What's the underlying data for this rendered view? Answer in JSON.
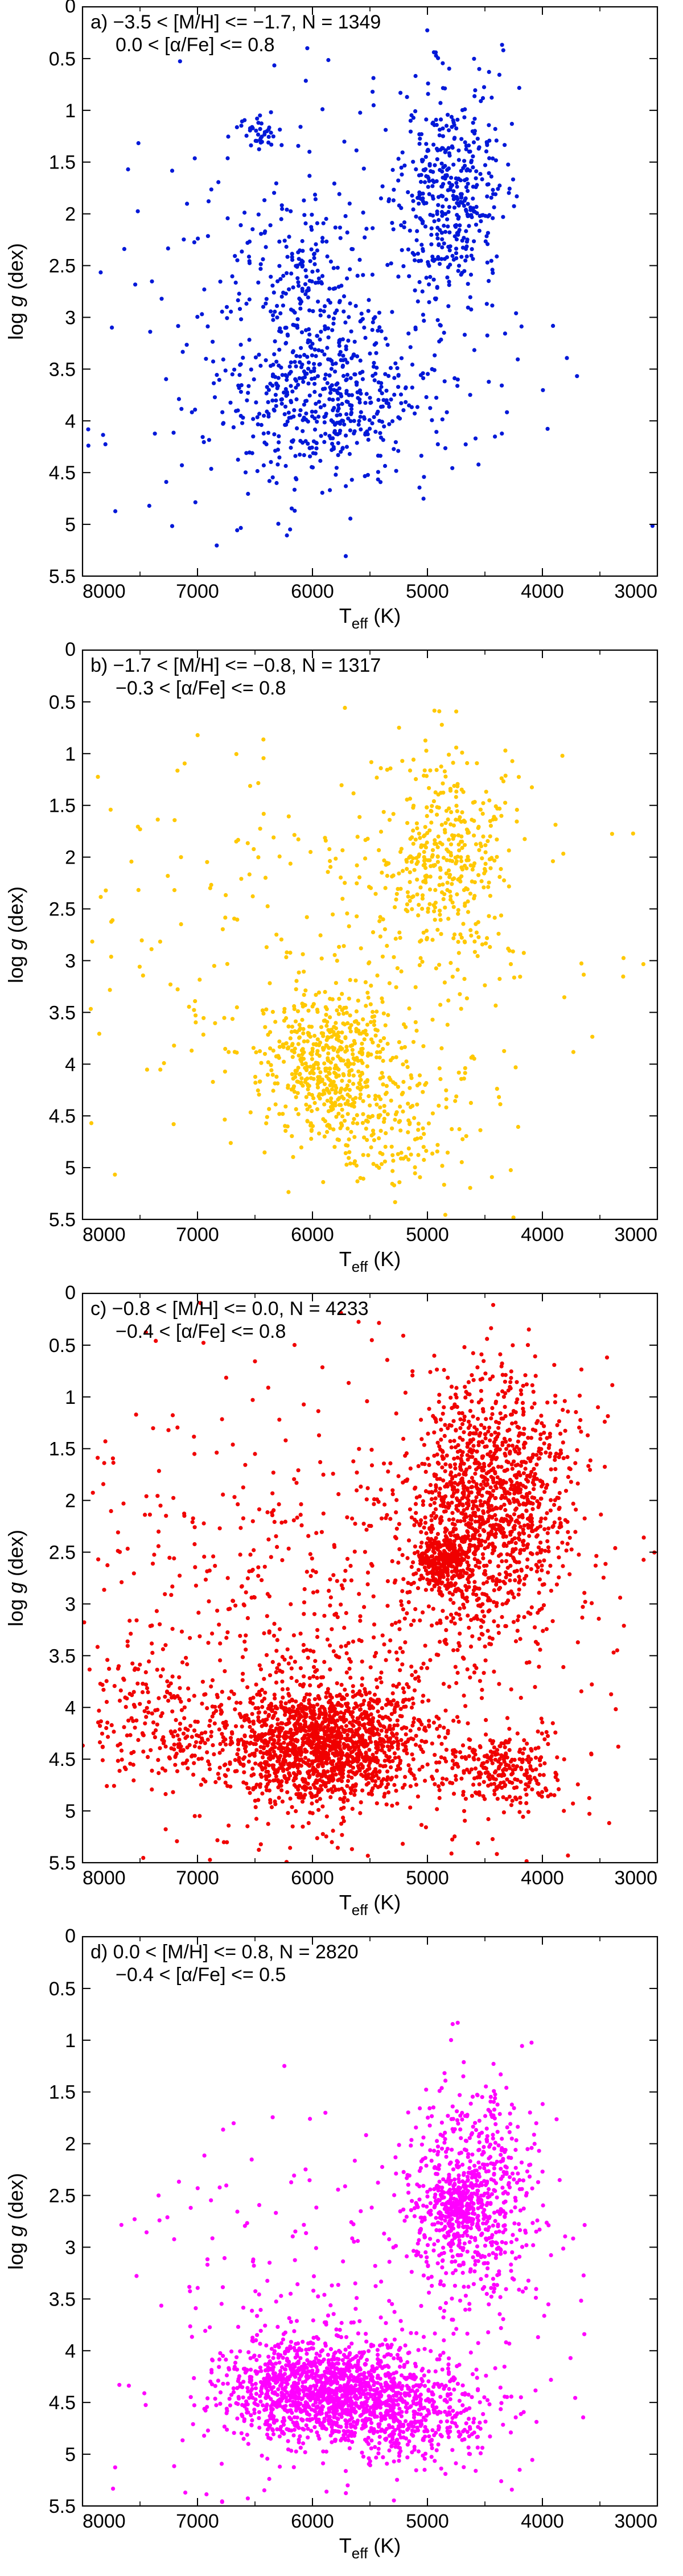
{
  "chart_data": [
    {
      "type": "scatter",
      "panel": "a",
      "color": "#0018d8",
      "annotation_line1": "a) −3.5 < [M/H]  <= −1.7,  N = 1349",
      "annotation_line2": "0.0 < [α/Fe] <=  0.8",
      "xlabel_main": "T",
      "xlabel_sub": "eff",
      "xlabel_unit": " (K)",
      "ylabel_main": "log ",
      "ylabel_italic": "g",
      "ylabel_unit": " (dex)",
      "xlim": [
        8000,
        3000
      ],
      "ylim": [
        5.5,
        0
      ],
      "xticks": [
        8000,
        7000,
        6000,
        5000,
        4000,
        3000
      ],
      "yticks": [
        0,
        0.5,
        1,
        1.5,
        2,
        2.5,
        3,
        3.5,
        4,
        4.5,
        5,
        5.5
      ],
      "clusters": [
        {
          "label": "red giant branch",
          "x_mean": 4800,
          "x_sd": 230,
          "y_mean": 1.8,
          "y_sd": 0.5,
          "count": 420
        },
        {
          "label": "subgiant / turnoff",
          "x_mean": 5900,
          "x_sd": 450,
          "y_mean": 3.8,
          "y_sd": 0.4,
          "count": 480
        },
        {
          "label": "horizontal branch",
          "x_mean": 6100,
          "x_sd": 250,
          "y_mean": 2.6,
          "y_sd": 0.4,
          "count": 160
        },
        {
          "label": "blue horizontal branch",
          "x_mean": 6450,
          "x_sd": 80,
          "y_mean": 1.2,
          "y_sd": 0.08,
          "count": 35
        },
        {
          "label": "scattered",
          "x_mean": 6000,
          "x_sd": 1100,
          "y_mean": 3.0,
          "y_sd": 1.2,
          "count": 254
        }
      ]
    },
    {
      "type": "scatter",
      "panel": "b",
      "color": "#ffc800",
      "annotation_line1": "b) −1.7 < [M/H]  <= −0.8,  N = 1317",
      "annotation_line2": "−0.3 < [α/Fe] <=  0.8",
      "xlabel_main": "T",
      "xlabel_sub": "eff",
      "xlabel_unit": " (K)",
      "ylabel_main": "log ",
      "ylabel_italic": "g",
      "ylabel_unit": " (dex)",
      "xlim": [
        8000,
        3000
      ],
      "ylim": [
        5.5,
        0
      ],
      "xticks": [
        8000,
        7000,
        6000,
        5000,
        4000,
        3000
      ],
      "yticks": [
        0,
        0.5,
        1,
        1.5,
        2,
        2.5,
        3,
        3.5,
        4,
        4.5,
        5,
        5.5
      ],
      "clusters": [
        {
          "label": "main sequence turnoff",
          "x_mean": 5850,
          "x_sd": 280,
          "y_mean": 4.0,
          "y_sd": 0.35,
          "count": 500
        },
        {
          "label": "red giant branch",
          "x_mean": 4850,
          "x_sd": 280,
          "y_mean": 2.0,
          "y_sd": 0.5,
          "count": 380
        },
        {
          "label": "dwarfs",
          "x_mean": 5300,
          "x_sd": 350,
          "y_mean": 4.6,
          "y_sd": 0.3,
          "count": 150
        },
        {
          "label": "scattered",
          "x_mean": 5800,
          "x_sd": 1100,
          "y_mean": 3.0,
          "y_sd": 1.2,
          "count": 287
        }
      ]
    },
    {
      "type": "scatter",
      "panel": "c",
      "color": "#f00000",
      "annotation_line1": "c) −0.8 < [M/H] <= 0.0,  N = 4233",
      "annotation_line2": "−0.4 < [α/Fe] <= 0.8",
      "xlabel_main": "T",
      "xlabel_sub": "eff",
      "xlabel_unit": " (K)",
      "ylabel_main": "log ",
      "ylabel_italic": "g",
      "ylabel_unit": " (dex)",
      "xlim": [
        8000,
        3000
      ],
      "ylim": [
        5.5,
        0
      ],
      "xticks": [
        8000,
        7000,
        6000,
        5000,
        4000,
        3000
      ],
      "yticks": [
        0,
        0.5,
        1,
        1.5,
        2,
        2.5,
        3,
        3.5,
        4,
        4.5,
        5,
        5.5
      ],
      "clusters": [
        {
          "label": "main sequence",
          "x_mean": 5900,
          "x_sd": 450,
          "y_mean": 4.35,
          "y_sd": 0.3,
          "count": 1500
        },
        {
          "label": "red giant branch",
          "x_mean": 4450,
          "x_sd": 350,
          "y_mean": 2.0,
          "y_sd": 0.6,
          "count": 1200
        },
        {
          "label": "red clump",
          "x_mean": 4850,
          "x_sd": 130,
          "y_mean": 2.6,
          "y_sd": 0.15,
          "count": 300
        },
        {
          "label": "cool dwarfs",
          "x_mean": 4300,
          "x_sd": 250,
          "y_mean": 4.6,
          "y_sd": 0.2,
          "count": 250
        },
        {
          "label": "hot main sequence",
          "x_mean": 7300,
          "x_sd": 350,
          "y_mean": 4.2,
          "y_sd": 0.3,
          "count": 200
        },
        {
          "label": "scattered",
          "x_mean": 5800,
          "x_sd": 1200,
          "y_mean": 3.2,
          "y_sd": 1.2,
          "count": 783
        }
      ]
    },
    {
      "type": "scatter",
      "panel": "d",
      "color": "#ff00ff",
      "annotation_line1": "d)  0.0 < [M/H]  <= 0.8,  N = 2820",
      "annotation_line2": "−0.4 < [α/Fe] <= 0.5",
      "xlabel_main": "T",
      "xlabel_sub": "eff",
      "xlabel_unit": " (K)",
      "ylabel_main": "log ",
      "ylabel_italic": "g",
      "ylabel_unit": " (dex)",
      "xlim": [
        8000,
        3000
      ],
      "ylim": [
        5.5,
        0
      ],
      "xticks": [
        8000,
        7000,
        6000,
        5000,
        4000,
        3000
      ],
      "yticks": [
        0,
        0.5,
        1,
        1.5,
        2,
        2.5,
        3,
        3.5,
        4,
        4.5,
        5,
        5.5
      ],
      "clusters": [
        {
          "label": "main sequence",
          "x_mean": 5900,
          "x_sd": 420,
          "y_mean": 4.4,
          "y_sd": 0.25,
          "count": 1300
        },
        {
          "label": "red giant branch",
          "x_mean": 4600,
          "x_sd": 280,
          "y_mean": 2.5,
          "y_sd": 0.5,
          "count": 600
        },
        {
          "label": "red clump",
          "x_mean": 4750,
          "x_sd": 120,
          "y_mean": 2.6,
          "y_sd": 0.15,
          "count": 200
        },
        {
          "label": "dwarfs",
          "x_mean": 5100,
          "x_sd": 350,
          "y_mean": 4.6,
          "y_sd": 0.25,
          "count": 400
        },
        {
          "label": "scattered",
          "x_mean": 5600,
          "x_sd": 1100,
          "y_mean": 3.6,
          "y_sd": 1.0,
          "count": 320
        }
      ]
    }
  ]
}
